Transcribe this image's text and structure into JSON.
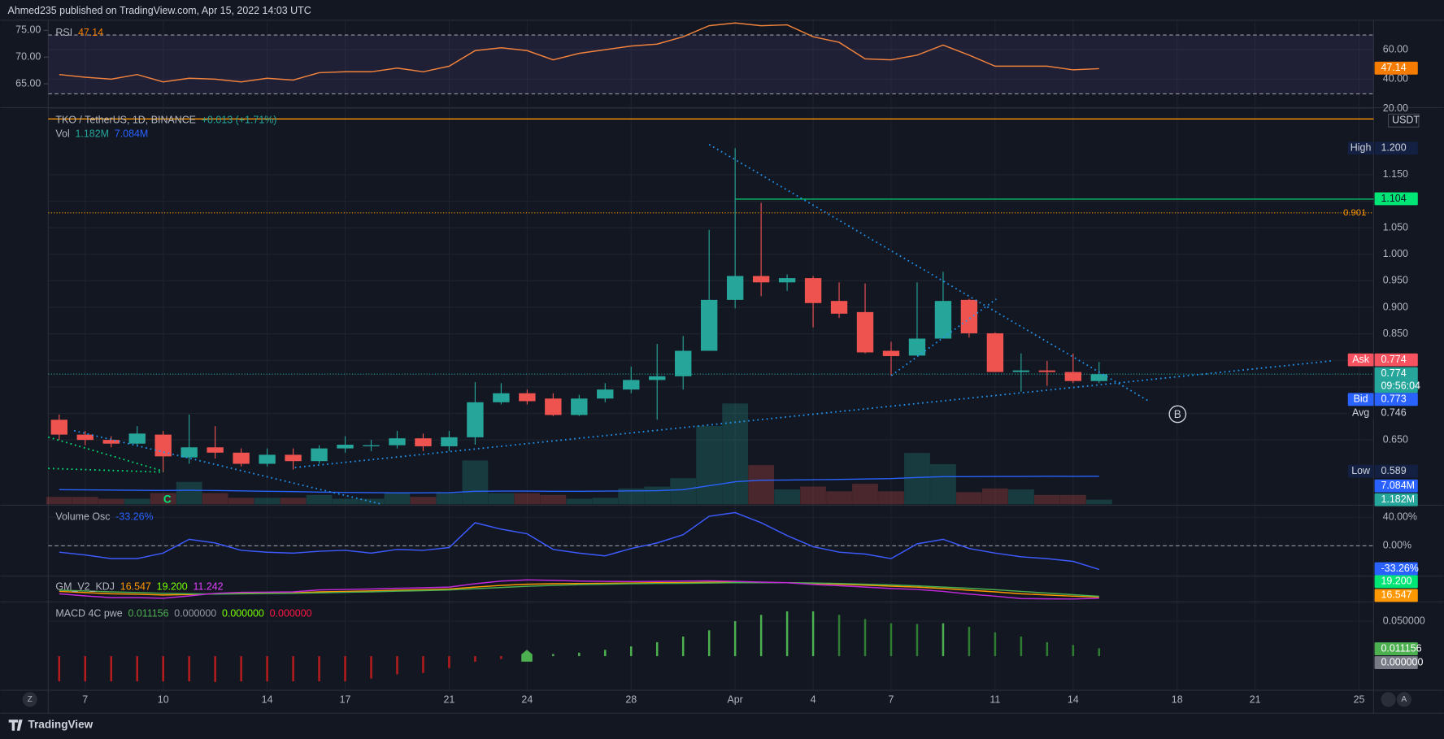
{
  "header": {
    "publisher": "Ahmed235 published on TradingView.com, Apr 15, 2022 14:03 UTC",
    "brand": "TradingView",
    "buttons": [
      "Z",
      "A"
    ]
  },
  "chart_data": [
    {
      "type": "line",
      "title": "RSI",
      "legend": [
        {
          "label": "47.14",
          "color": "#f57c00"
        }
      ],
      "series": [
        {
          "name": "RSI",
          "color": "#f0823c",
          "values": [
            43.1,
            41.3,
            40,
            43.1,
            38.1,
            40.6,
            40,
            38.1,
            40.6,
            39.4,
            44.4,
            45,
            45,
            47.5,
            45,
            48.8,
            59.4,
            61.3,
            59.4,
            53.1,
            57.5,
            60,
            62.5,
            63.8,
            68.8,
            76.3,
            78.1,
            76.3,
            76.9,
            68.8,
            65,
            53.8,
            53.1,
            56.3,
            63.1,
            56.3,
            48.8,
            48.8,
            48.8,
            46.3,
            47.14
          ]
        }
      ],
      "ylim": [
        21.25,
        80
      ],
      "yticks": [
        {
          "value": 60,
          "label": "60.00"
        },
        {
          "value": 40,
          "label": "40.00"
        },
        {
          "value": 20,
          "label": "20.00"
        }
      ],
      "y2lim": [
        60.7,
        76.9
      ],
      "y2ticks": [
        {
          "value": 75,
          "label": "75.00"
        },
        {
          "value": 70,
          "label": "70.00"
        },
        {
          "value": 65,
          "label": "65.00"
        }
      ],
      "levels": [
        70,
        30
      ],
      "band": true,
      "badges": [
        {
          "label": "47.14",
          "color": "#f57c00"
        }
      ]
    },
    {
      "type": "candlestick",
      "title": "TKO / TetherUS, 1D, BINANCE",
      "change": "+0.013 (+1.71%)",
      "x": [
        6,
        7,
        8,
        9,
        10,
        11,
        12,
        13,
        14,
        15,
        16,
        17,
        18,
        19,
        20,
        21,
        22,
        23,
        24,
        25,
        26,
        27,
        28,
        29,
        30,
        31,
        32,
        33,
        34,
        35,
        36,
        37,
        38,
        39,
        40,
        41,
        42,
        43,
        44,
        45,
        46
      ],
      "open": [
        0.688,
        0.66,
        0.65,
        0.643,
        0.66,
        0.617,
        0.636,
        0.626,
        0.605,
        0.622,
        0.61,
        0.634,
        0.638,
        0.64,
        0.653,
        0.638,
        0.655,
        0.721,
        0.738,
        0.728,
        0.697,
        0.728,
        0.745,
        0.763,
        0.77,
        0.818,
        0.914,
        0.959,
        0.947,
        0.955,
        0.912,
        0.891,
        0.818,
        0.809,
        0.841,
        0.914,
        0.851,
        0.778,
        0.781,
        0.778,
        0.761
      ],
      "high": [
        0.698,
        0.667,
        0.657,
        0.676,
        0.667,
        0.698,
        0.676,
        0.634,
        0.634,
        0.634,
        0.64,
        0.657,
        0.65,
        0.667,
        0.662,
        0.667,
        0.759,
        0.757,
        0.745,
        0.738,
        0.735,
        0.757,
        0.788,
        0.831,
        0.846,
        1.046,
        1.2,
        1.097,
        0.962,
        0.959,
        0.947,
        0.945,
        0.835,
        0.947,
        0.967,
        0.916,
        0.853,
        0.813,
        0.799,
        0.813,
        0.797
      ],
      "low": [
        0.65,
        0.64,
        0.636,
        0.64,
        0.589,
        0.605,
        0.615,
        0.6,
        0.6,
        0.594,
        0.605,
        0.626,
        0.629,
        0.634,
        0.629,
        0.629,
        0.641,
        0.717,
        0.717,
        0.695,
        0.695,
        0.721,
        0.738,
        0.688,
        0.745,
        0.818,
        0.898,
        0.921,
        0.931,
        0.862,
        0.88,
        0.813,
        0.771,
        0.809,
        0.841,
        0.843,
        0.778,
        0.741,
        0.752,
        0.757,
        0.757
      ],
      "close": [
        0.66,
        0.65,
        0.643,
        0.662,
        0.619,
        0.636,
        0.626,
        0.605,
        0.622,
        0.61,
        0.634,
        0.641,
        0.64,
        0.653,
        0.638,
        0.655,
        0.721,
        0.738,
        0.723,
        0.697,
        0.728,
        0.745,
        0.763,
        0.77,
        0.818,
        0.914,
        0.959,
        0.947,
        0.955,
        0.908,
        0.888,
        0.815,
        0.808,
        0.841,
        0.912,
        0.851,
        0.778,
        0.781,
        0.778,
        0.761,
        0.774
      ],
      "up_color": "#26a69a",
      "down_color": "#ef5350",
      "xlim": [
        5.58,
        56.56
      ],
      "xticks": [
        7,
        10,
        14,
        17,
        21,
        24,
        28,
        {
          "value": 32,
          "label": "Apr"
        },
        {
          "value": 35,
          "label": "4"
        },
        {
          "value": 38,
          "label": "7"
        },
        {
          "value": 42,
          "label": "11"
        },
        {
          "value": 45,
          "label": "14"
        },
        {
          "value": 49,
          "label": "18"
        },
        {
          "value": 52,
          "label": "21"
        },
        {
          "value": 56,
          "label": "25"
        }
      ],
      "ylim": [
        0.5286,
        1.2746
      ],
      "yticks": [
        {
          "value": 0.65,
          "label": "0.650"
        },
        {
          "value": 0.7,
          "label": "0.700"
        },
        {
          "value": 0.75,
          "label": "0.750"
        },
        {
          "value": 0.8,
          "label": "0.800"
        },
        {
          "value": 0.85,
          "label": "0.850"
        },
        {
          "value": 0.9,
          "label": "0.900"
        },
        {
          "value": 0.95,
          "label": "0.950"
        },
        {
          "value": 1.0,
          "label": "1.000"
        },
        {
          "value": 1.05,
          "label": "1.050"
        },
        {
          "value": 1.1,
          "label": "1.100"
        },
        {
          "value": 1.15,
          "label": "1.150"
        }
      ],
      "volume_title": "Vol",
      "volume_ylim": [
        0,
        100000000
      ],
      "volume": [
        1888000,
        1888000,
        1416000,
        1416000,
        2832000,
        5664000,
        2832000,
        1652000,
        1652000,
        1652000,
        2360000,
        1416000,
        1416000,
        2832000,
        1888000,
        2832000,
        11092000,
        2832000,
        2832000,
        2360000,
        1416000,
        1652000,
        4012000,
        4484000,
        6608000,
        19824000,
        25488000,
        9912000,
        3776000,
        4484000,
        3304000,
        5192000,
        3304000,
        12980000,
        10148000,
        3068000,
        4012000,
        3776000,
        2360000,
        2360000,
        1182000
      ],
      "volume_label": "1.182M",
      "volume_ma": [
        3700000,
        3650000,
        3600000,
        3550000,
        3500000,
        3550000,
        3500000,
        3400000,
        3300000,
        3200000,
        3100000,
        3000000,
        2950000,
        2900000,
        2900000,
        2950000,
        3300000,
        3350000,
        3350000,
        3300000,
        3300000,
        3350000,
        3400000,
        3450000,
        3700000,
        4700000,
        5700000,
        6100000,
        6150000,
        6200000,
        6300000,
        6400000,
        6500000,
        6800000,
        7000000,
        7000000,
        7050000,
        7050000,
        7100000,
        7080000,
        7084000
      ],
      "volume_ma_label": "7.084M",
      "volume_ma_color": "#2962ff",
      "currency": "USDT",
      "badges": [
        {
          "name": "High",
          "label": "1.200"
        },
        {
          "label": "1.104",
          "price": 1.104,
          "from_x": 32
        },
        {
          "name": "Ask",
          "label": "0.774"
        },
        {
          "label": "0.774",
          "sub": "09:56:04",
          "price": 0.774
        },
        {
          "name": "Bid",
          "label": "0.773"
        },
        {
          "name": "Avg",
          "label": "0.746"
        },
        {
          "name": "Low",
          "label": "0.589"
        }
      ],
      "fib": {
        "label": "0.901",
        "price": 1.078
      },
      "resistance": 1.255,
      "annotations": [
        "C",
        "B"
      ]
    },
    {
      "type": "line",
      "title": "Volume Osc",
      "legend": [
        {
          "label": "-33.26%",
          "color": "#2962ff"
        }
      ],
      "series": [
        {
          "name": "Volume Osc",
          "color": "#3d5afe",
          "values": [
            -9,
            -12.9,
            -18.1,
            -18.1,
            -10.3,
            9,
            3.9,
            -6.5,
            -9,
            -10.3,
            -7.7,
            -6.5,
            -10.3,
            -5.2,
            -6.5,
            -2.6,
            32.3,
            23.2,
            16.8,
            -5.2,
            -10.3,
            -14.2,
            -3.9,
            3.9,
            15.5,
            41.3,
            46.5,
            32.3,
            14.2,
            -1.3,
            -9,
            -11.6,
            -18.1,
            2.6,
            9,
            -3.9,
            -10.3,
            -15.5,
            -18.1,
            -21.9,
            -33.26
          ]
        }
      ],
      "ylim": [
        -41.3,
        52.9
      ],
      "yticks": [
        {
          "value": 40,
          "label": "40.00%"
        },
        {
          "value": 0,
          "label": "0.00%"
        }
      ],
      "levels": [
        0
      ],
      "badges": [
        {
          "label": "-33.26%",
          "color": "#2962ff"
        }
      ]
    },
    {
      "type": "line",
      "title": "GM_V2_KDJ",
      "legend": [
        {
          "label": "16.547",
          "color": "#ff9800"
        },
        {
          "label": "19.200",
          "color": "#76ff03"
        },
        {
          "label": "11.242",
          "color": "#e040fb"
        }
      ],
      "series": [
        {
          "name": "K",
          "color": "#ff9800",
          "values": [
            40,
            35,
            30,
            28,
            25,
            27,
            30,
            32,
            33,
            34,
            38,
            40,
            42,
            45,
            47,
            50,
            58,
            65,
            70,
            72,
            73,
            74,
            75,
            76,
            77,
            78,
            78,
            77,
            76,
            73,
            70,
            66,
            62,
            58,
            52,
            45,
            38,
            30,
            25,
            20,
            16.547
          ]
        },
        {
          "name": "D",
          "color": "#4caf50",
          "values": [
            45,
            42,
            38,
            35,
            32,
            30,
            29,
            30,
            31,
            32,
            34,
            36,
            38,
            41,
            43,
            46,
            51,
            56,
            61,
            65,
            68,
            70,
            72,
            73,
            74,
            75,
            76,
            76,
            76,
            75,
            73,
            70,
            67,
            63,
            58,
            53,
            47,
            40,
            33,
            26,
            19.2
          ]
        },
        {
          "name": "J",
          "color": "#c028d8",
          "values": [
            30,
            21,
            14,
            14,
            11,
            21,
            32,
            36,
            37,
            38,
            46,
            48,
            50,
            53,
            55,
            58,
            72,
            83,
            88,
            86,
            83,
            82,
            81,
            82,
            83,
            84,
            82,
            79,
            76,
            69,
            64,
            58,
            52,
            48,
            40,
            29,
            20,
            10,
            9,
            8,
            11.242
          ]
        }
      ],
      "ylim": [
        0,
        100
      ],
      "badges": [
        {
          "label": "19.200",
          "color": "#00e676"
        },
        {
          "label": "16.547",
          "color": "#ff9800"
        }
      ]
    },
    {
      "type": "bar",
      "title": "MACD 4C pwe",
      "legend": [
        {
          "label": "0.011156",
          "color": "#4caf50"
        },
        {
          "label": "0.000000",
          "color": "#9598a1"
        },
        {
          "label": "0.000000",
          "color": "#76ff03"
        },
        {
          "label": "0.000000",
          "color": "#ff1744"
        }
      ],
      "values": [
        -0.036,
        -0.036,
        -0.036,
        -0.036,
        -0.036,
        -0.036,
        -0.037,
        -0.036,
        -0.036,
        -0.036,
        -0.036,
        -0.036,
        -0.032,
        -0.026,
        -0.024,
        -0.017,
        -0.008,
        -0.004,
        0,
        0.003,
        0.005,
        0.009,
        0.014,
        0.02,
        0.028,
        0.037,
        0.05,
        0.059,
        0.064,
        0.064,
        0.059,
        0.053,
        0.047,
        0.046,
        0.047,
        0.042,
        0.034,
        0.028,
        0.02,
        0.016,
        0.011156
      ],
      "colors": {
        "up": "#4caf50",
        "fade": "#2e7d32",
        "down": "#b71c1c"
      },
      "ylim": [
        -0.0461,
        0.0763
      ],
      "yticks": [
        {
          "value": 0.05,
          "label": "0.050000"
        }
      ],
      "badges": [
        {
          "label": "0.011156",
          "color": "#4caf50"
        },
        {
          "label": "0.000000",
          "color": "#787b86"
        }
      ]
    }
  ]
}
